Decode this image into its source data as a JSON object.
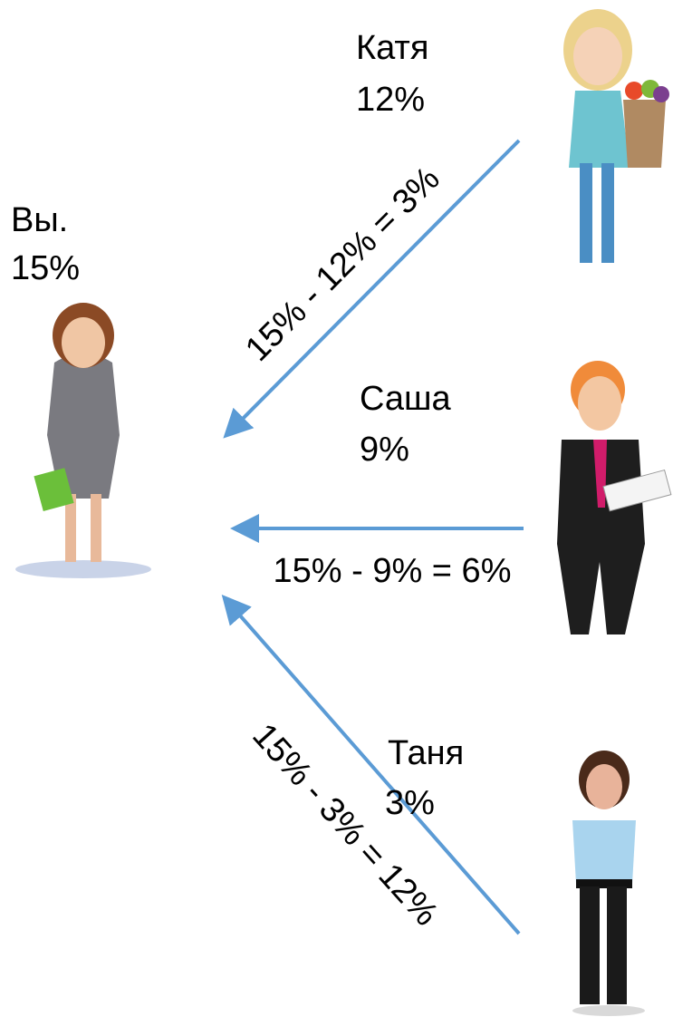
{
  "nodes": [
    {
      "name": "Вы.",
      "value": "15%"
    },
    {
      "name": "Катя",
      "value": "12%"
    },
    {
      "name": "Саша",
      "value": "9%"
    },
    {
      "name": "Таня",
      "value": "3%"
    }
  ],
  "edges": [
    {
      "label": "15% - 12% = 3%"
    },
    {
      "label": "15% - 9% = 6%"
    },
    {
      "label": "15% - 3% = 12%"
    }
  ]
}
